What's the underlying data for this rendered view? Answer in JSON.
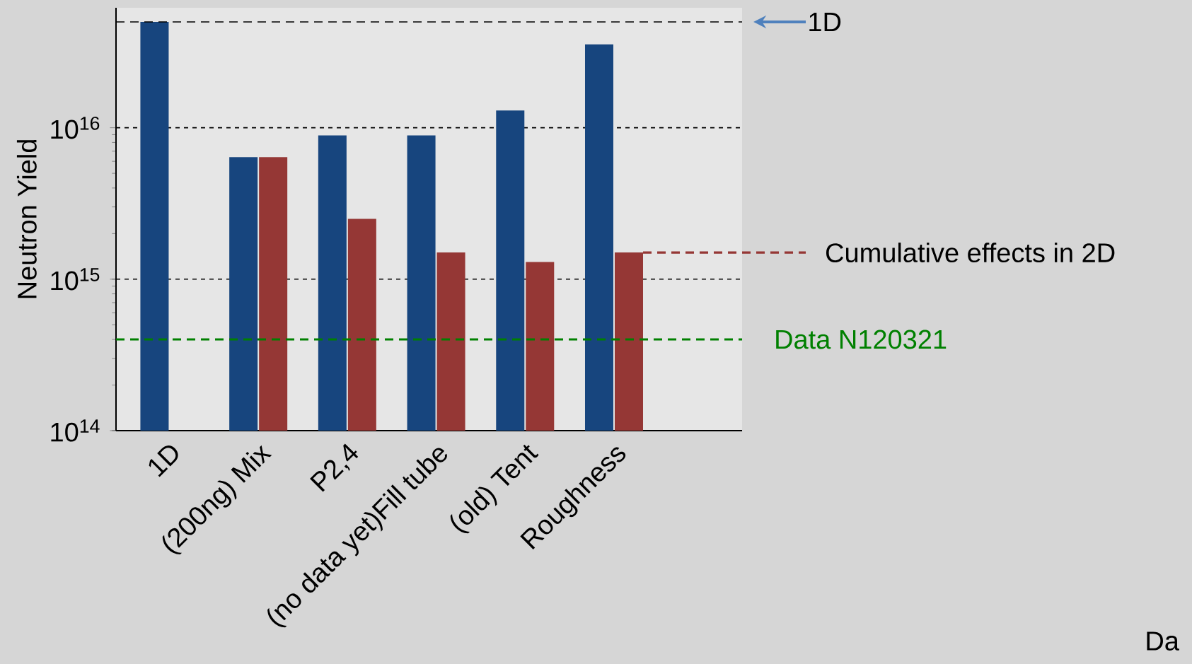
{
  "chart_data": {
    "type": "bar",
    "ylabel": "Neutron Yield",
    "categories": [
      "1D",
      "(200ng) Mix",
      "P2,4",
      "(no data yet)Fill tube",
      "(old) Tent",
      "Roughness"
    ],
    "series": [
      {
        "color": "#17457e",
        "values": [
          5e+16,
          6400000000000000.0,
          8900000000000000.0,
          8900000000000000.0,
          1.3e+16,
          3.55e+16
        ]
      },
      {
        "color": "#953735",
        "values": [
          null,
          6400000000000000.0,
          2500000000000000.0,
          1500000000000000.0,
          1300000000000000.0,
          1500000000000000.0
        ]
      }
    ],
    "log": true,
    "ylim": [
      100000000000000.0,
      6.2e+16
    ],
    "yticks": [
      {
        "value": 100000000000000.0,
        "label": "10$^{14}$"
      },
      {
        "value": 1000000000000000.0,
        "label": "10$^{15}$"
      },
      {
        "value": 1e+16,
        "label": "10$^{16}$"
      }
    ],
    "grid": "y",
    "ref_lines": [
      {
        "axis": "y",
        "value": 5e+16,
        "label": "1D",
        "color": "#000000",
        "line_style": "dashed"
      },
      {
        "axis": "y",
        "value": 400000000000000.0,
        "label": "Data N120321",
        "color": "#008000",
        "line_style": "dashed"
      },
      {
        "axis": "y",
        "value": 1500000000000000.0,
        "label": "Cumulative effects in 2D",
        "color": "#953735",
        "line_style": "dashed"
      }
    ],
    "annotations": [
      "Da"
    ]
  }
}
